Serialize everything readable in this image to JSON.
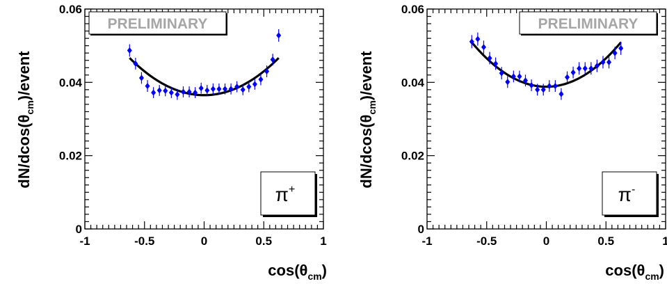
{
  "chart_data": [
    {
      "type": "scatter",
      "particle": {
        "base": "π",
        "sup": "+"
      },
      "watermark": "PRELIMINARY",
      "watermark_position": "top-left",
      "ylabel": {
        "pre": "dN/dcos(θ",
        "sub": "cm",
        "post": ")/event"
      },
      "xlabel": {
        "pre": "cos(θ",
        "sub": "cm",
        "post": ")"
      },
      "xlim": [
        -1,
        1
      ],
      "ylim": [
        0,
        0.06
      ],
      "xticks": [
        "-1",
        "-0.5",
        "0",
        "0.5",
        "1"
      ],
      "yticks": [
        "0",
        "0.02",
        "0.04",
        "0.06"
      ],
      "grid": false,
      "marker_color": "#0000ff",
      "fit_color": "#000000",
      "fit": {
        "form": "quadratic",
        "a": 0.0365,
        "b": 0.0,
        "c": 0.026,
        "xrange": [
          -0.625,
          0.625
        ]
      },
      "points": [
        {
          "x": -0.625,
          "y": 0.0487,
          "err": 0.0017
        },
        {
          "x": -0.575,
          "y": 0.0451,
          "err": 0.0016
        },
        {
          "x": -0.525,
          "y": 0.0412,
          "err": 0.0016
        },
        {
          "x": -0.475,
          "y": 0.039,
          "err": 0.0016
        },
        {
          "x": -0.425,
          "y": 0.0372,
          "err": 0.0015
        },
        {
          "x": -0.375,
          "y": 0.0378,
          "err": 0.0015
        },
        {
          "x": -0.325,
          "y": 0.0377,
          "err": 0.0015
        },
        {
          "x": -0.275,
          "y": 0.0372,
          "err": 0.0015
        },
        {
          "x": -0.225,
          "y": 0.0367,
          "err": 0.0015
        },
        {
          "x": -0.175,
          "y": 0.0374,
          "err": 0.0015
        },
        {
          "x": -0.125,
          "y": 0.0374,
          "err": 0.0015
        },
        {
          "x": -0.075,
          "y": 0.0372,
          "err": 0.0015
        },
        {
          "x": -0.025,
          "y": 0.0384,
          "err": 0.0015
        },
        {
          "x": 0.025,
          "y": 0.0378,
          "err": 0.0015
        },
        {
          "x": 0.075,
          "y": 0.0382,
          "err": 0.0015
        },
        {
          "x": 0.125,
          "y": 0.0382,
          "err": 0.0015
        },
        {
          "x": 0.175,
          "y": 0.0382,
          "err": 0.0015
        },
        {
          "x": 0.225,
          "y": 0.0382,
          "err": 0.0015
        },
        {
          "x": 0.275,
          "y": 0.0388,
          "err": 0.0015
        },
        {
          "x": 0.325,
          "y": 0.038,
          "err": 0.0015
        },
        {
          "x": 0.375,
          "y": 0.0388,
          "err": 0.0015
        },
        {
          "x": 0.425,
          "y": 0.0395,
          "err": 0.0015
        },
        {
          "x": 0.475,
          "y": 0.0408,
          "err": 0.0016
        },
        {
          "x": 0.525,
          "y": 0.043,
          "err": 0.0016
        },
        {
          "x": 0.575,
          "y": 0.0462,
          "err": 0.0016
        },
        {
          "x": 0.625,
          "y": 0.0528,
          "err": 0.0017
        }
      ]
    },
    {
      "type": "scatter",
      "particle": {
        "base": "π",
        "sup": "-"
      },
      "watermark": "PRELIMINARY",
      "watermark_position": "top-right",
      "ylabel": {
        "pre": "dN/dcos(θ",
        "sub": "cm",
        "post": ")/event"
      },
      "xlabel": {
        "pre": "cos(θ",
        "sub": "cm",
        "post": ")"
      },
      "xlim": [
        -1,
        1
      ],
      "ylim": [
        0,
        0.06
      ],
      "xticks": [
        "-1",
        "-0.5",
        "0",
        "0.5",
        "1"
      ],
      "yticks": [
        "0",
        "0.02",
        "0.04",
        "0.06"
      ],
      "grid": false,
      "marker_color": "#0000ff",
      "fit_color": "#000000",
      "fit": {
        "form": "quadratic",
        "a": 0.0388,
        "b": 0.0,
        "c": 0.031,
        "xrange": [
          -0.625,
          0.625
        ]
      },
      "points": [
        {
          "x": -0.625,
          "y": 0.0511,
          "err": 0.0018
        },
        {
          "x": -0.575,
          "y": 0.0518,
          "err": 0.0018
        },
        {
          "x": -0.525,
          "y": 0.0496,
          "err": 0.0018
        },
        {
          "x": -0.475,
          "y": 0.0466,
          "err": 0.0017
        },
        {
          "x": -0.425,
          "y": 0.0451,
          "err": 0.0017
        },
        {
          "x": -0.375,
          "y": 0.0425,
          "err": 0.0017
        },
        {
          "x": -0.325,
          "y": 0.0401,
          "err": 0.0016
        },
        {
          "x": -0.275,
          "y": 0.0416,
          "err": 0.0016
        },
        {
          "x": -0.225,
          "y": 0.0416,
          "err": 0.0016
        },
        {
          "x": -0.175,
          "y": 0.0405,
          "err": 0.0016
        },
        {
          "x": -0.125,
          "y": 0.0392,
          "err": 0.0016
        },
        {
          "x": -0.075,
          "y": 0.038,
          "err": 0.0016
        },
        {
          "x": -0.025,
          "y": 0.038,
          "err": 0.0016
        },
        {
          "x": 0.025,
          "y": 0.039,
          "err": 0.0016
        },
        {
          "x": 0.075,
          "y": 0.039,
          "err": 0.0016
        },
        {
          "x": 0.125,
          "y": 0.0368,
          "err": 0.0016
        },
        {
          "x": 0.175,
          "y": 0.0414,
          "err": 0.0016
        },
        {
          "x": 0.225,
          "y": 0.0427,
          "err": 0.0016
        },
        {
          "x": 0.275,
          "y": 0.0438,
          "err": 0.0017
        },
        {
          "x": 0.325,
          "y": 0.0438,
          "err": 0.0017
        },
        {
          "x": 0.375,
          "y": 0.0438,
          "err": 0.0017
        },
        {
          "x": 0.425,
          "y": 0.0445,
          "err": 0.0017
        },
        {
          "x": 0.475,
          "y": 0.0455,
          "err": 0.0017
        },
        {
          "x": 0.525,
          "y": 0.0455,
          "err": 0.0017
        },
        {
          "x": 0.575,
          "y": 0.048,
          "err": 0.0017
        },
        {
          "x": 0.625,
          "y": 0.0493,
          "err": 0.0018
        }
      ]
    }
  ]
}
